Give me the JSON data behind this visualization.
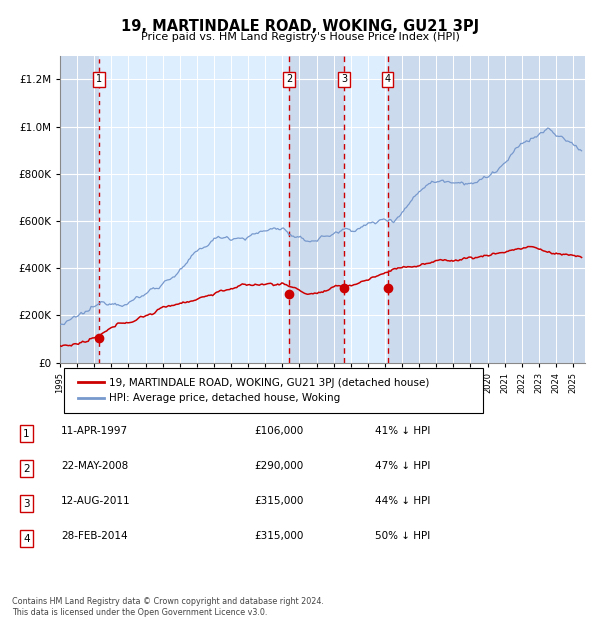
{
  "title": "19, MARTINDALE ROAD, WOKING, GU21 3PJ",
  "subtitle": "Price paid vs. HM Land Registry's House Price Index (HPI)",
  "footer1": "Contains HM Land Registry data © Crown copyright and database right 2024.",
  "footer2": "This data is licensed under the Open Government Licence v3.0.",
  "legend_line1": "19, MARTINDALE ROAD, WOKING, GU21 3PJ (detached house)",
  "legend_line2": "HPI: Average price, detached house, Woking",
  "transactions": [
    {
      "num": 1,
      "date": "11-APR-1997",
      "price": 106000,
      "pct": "41%",
      "year": 1997.28
    },
    {
      "num": 2,
      "date": "22-MAY-2008",
      "price": 290000,
      "pct": "47%",
      "year": 2008.39
    },
    {
      "num": 3,
      "date": "12-AUG-2011",
      "price": 315000,
      "pct": "44%",
      "year": 2011.62
    },
    {
      "num": 4,
      "date": "28-FEB-2014",
      "price": 315000,
      "pct": "50%",
      "year": 2014.16
    }
  ],
  "hpi_color": "#7799cc",
  "price_color": "#cc0000",
  "vline_color_dashed": "#cc0000",
  "bg_color": "#ddeeff",
  "plot_bg": "#ffffff",
  "grid_color": "#bbccdd",
  "ylim": [
    0,
    1300000
  ],
  "xlim_start": 1995.0,
  "xlim_end": 2025.7
}
